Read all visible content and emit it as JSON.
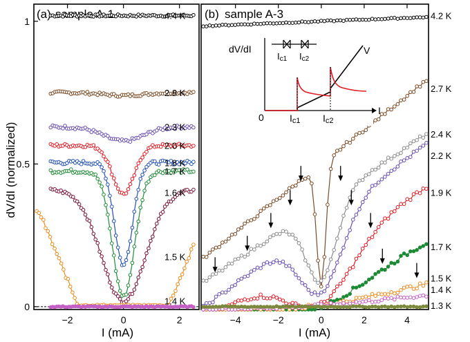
{
  "figure": {
    "ylabel": "dV/dI (normalized)",
    "zero_line_color": "#000000"
  },
  "chart_data": [
    {
      "type": "line",
      "panel": "(a)",
      "title": "sample A-1",
      "xlabel": "I (mA)",
      "ylabel": "dV/dI (normalized)",
      "xlim": [
        -3.2,
        2.7
      ],
      "ylim": [
        -0.01,
        1.06
      ],
      "xticks": [
        -2,
        0,
        2
      ],
      "yticks": [
        0,
        0.5,
        1
      ],
      "ytick_labels": [
        "0",
        "0.5",
        "1"
      ],
      "grid": false,
      "series": [
        {
          "name": "4.4 K",
          "color": "#000000",
          "marker": "open",
          "base": 1.02,
          "dip": 0.0,
          "width": 1.0,
          "noise": 0.004,
          "x_from": -2.6,
          "x_to": 2.5,
          "label_y": 1.02
        },
        {
          "name": "2.8 K",
          "color": "#7b4a24",
          "marker": "open",
          "base": 0.75,
          "dip": 0.01,
          "width": 1.0,
          "noise": 0.005,
          "x_from": -2.6,
          "x_to": 2.5,
          "label_y": 0.75
        },
        {
          "name": "2.3 K",
          "color": "#6a4fb3",
          "marker": "open",
          "base": 0.63,
          "dip": 0.05,
          "width": 1.0,
          "noise": 0.006,
          "x_from": -2.6,
          "x_to": 2.5,
          "label_y": 0.63
        },
        {
          "name": "2.0 K",
          "color": "#e01b24",
          "marker": "open",
          "base": 0.565,
          "dip": 0.17,
          "width": 0.55,
          "noise": 0.006,
          "x_from": -2.6,
          "x_to": 2.5,
          "label_y": 0.565
        },
        {
          "name": "1.8 K",
          "color": "#1f4fb5",
          "marker": "open",
          "base": 0.505,
          "dip": 0.36,
          "width": 0.45,
          "noise": 0.007,
          "x_from": -2.6,
          "x_to": 2.5,
          "label_y": 0.505
        },
        {
          "name": "1.7 K",
          "color": "#1d8a34",
          "marker": "open",
          "base": 0.475,
          "dip": 0.44,
          "width": 0.55,
          "noise": 0.007,
          "x_from": -2.6,
          "x_to": 2.5,
          "label_y": 0.475
        },
        {
          "name": "1.6 K",
          "color": "#7a1238",
          "marker": "open",
          "base": 0.41,
          "dip": 0.39,
          "width": 1.1,
          "noise": 0.006,
          "x_from": -2.6,
          "x_to": 2.5,
          "label_y": 0.4
        },
        {
          "name": "1.5 K",
          "color": "#f08a1c",
          "marker": "open",
          "base": 0.33,
          "dip": 0.33,
          "width": 1.5,
          "noise": 0.008,
          "x_from": -3.1,
          "x_to": 2.5,
          "label_y": 0.175
        },
        {
          "name": "1.4 K",
          "color": "#c45fc4",
          "marker": "filled",
          "base": 0.0,
          "dip": 0.0,
          "width": 1.0,
          "noise": 0.002,
          "x_from": -2.6,
          "x_to": 2.5,
          "label_y": 0.02
        }
      ]
    },
    {
      "type": "line",
      "panel": "(b)",
      "title": "sample A-3",
      "xlabel": "I (mA)",
      "ylabel": "",
      "xlim": [
        -5.6,
        5.0
      ],
      "ylim": [
        -0.01,
        1.06
      ],
      "xticks": [
        -4,
        -2,
        0,
        2,
        4
      ],
      "grid": false,
      "series": [
        {
          "name": "4.2 K",
          "color": "#000000",
          "marker": "open",
          "base": 1.0,
          "slope": 0.003,
          "dip": 0.0,
          "width": 1.0,
          "noise": 0.002,
          "x_from": -5.5,
          "x_to": 4.9,
          "label_y": 1.02
        },
        {
          "name": "2.7 K",
          "color": "#7b4a24",
          "marker": "open",
          "base": 0.5,
          "slope": 0.06,
          "dip": 0.43,
          "width": 0.3,
          "noise": 0.006,
          "x_from": -5.5,
          "x_to": 4.9,
          "label_y": 0.765
        },
        {
          "name": "2.4 K",
          "color": "#8c8c8c",
          "marker": "open",
          "base": 0.36,
          "slope": 0.05,
          "dip": 0.27,
          "width": 1.0,
          "noise": 0.007,
          "x_from": -5.5,
          "x_to": 4.9,
          "label_y": 0.605
        },
        {
          "name": "2.2 K",
          "color": "#6a4fb3",
          "marker": "open",
          "base": 0.3,
          "slope": 0.055,
          "dip": 0.25,
          "width": 1.4,
          "noise": 0.007,
          "x_from": -5.5,
          "x_to": 4.9,
          "label_y": 0.53
        },
        {
          "name": "1.9 K",
          "color": "#e01b24",
          "marker": "open",
          "base": 0.2,
          "slope": 0.045,
          "dip": 0.19,
          "width": 2.2,
          "noise": 0.008,
          "x_from": -5.5,
          "x_to": 4.9,
          "label_y": 0.4
        },
        {
          "name": "1.7 K",
          "color": "#1d8a34",
          "marker": "filled",
          "base": 0.09,
          "slope": 0.03,
          "dip": 0.09,
          "width": 3.5,
          "noise": 0.008,
          "x_from": -5.5,
          "x_to": 4.9,
          "label_y": 0.21
        },
        {
          "name": "1.5 K",
          "color": "#f08a1c",
          "marker": "open",
          "base": 0.04,
          "slope": 0.01,
          "dip": 0.035,
          "width": 4.5,
          "noise": 0.008,
          "x_from": -5.5,
          "x_to": 4.9,
          "label_y": 0.1
        },
        {
          "name": "1.4 K",
          "color": "#c45fc4",
          "marker": "open",
          "base": 0.02,
          "slope": 0.005,
          "dip": 0.015,
          "width": 4.6,
          "noise": 0.006,
          "x_from": -5.5,
          "x_to": 4.9,
          "label_y": 0.06
        },
        {
          "name": "1.3 K",
          "color": "#7a8a3a",
          "marker": "filled",
          "base": 0.0,
          "slope": 0.0,
          "dip": 0.0,
          "width": 1.0,
          "noise": 0.002,
          "x_from": -5.5,
          "x_to": 4.9,
          "label_y": 0.005
        }
      ],
      "arrows": [
        {
          "x": -0.95,
          "y": 0.44,
          "color": "#000000"
        },
        {
          "x": 0.9,
          "y": 0.44,
          "color": "#000000"
        },
        {
          "x": -1.45,
          "y": 0.355,
          "color": "#000000"
        },
        {
          "x": 1.4,
          "y": 0.355,
          "color": "#000000"
        },
        {
          "x": -2.35,
          "y": 0.275,
          "color": "#000000"
        },
        {
          "x": 2.3,
          "y": 0.275,
          "color": "#000000"
        },
        {
          "x": -3.45,
          "y": 0.195,
          "color": "#000000"
        },
        {
          "x": 2.85,
          "y": 0.15,
          "color": "#000000"
        },
        {
          "x": -4.95,
          "y": 0.12,
          "color": "#000000"
        },
        {
          "x": 4.45,
          "y": 0.1,
          "color": "#000000"
        }
      ],
      "inset": {
        "ylabel_red": "dV/dI",
        "ylabel_black": "V",
        "xlabel": "I",
        "origin": "0",
        "ic1": "I",
        "ic1_sub": "c1",
        "ic2": "I",
        "ic2_sub": "c2",
        "red_color": "#e01b24"
      }
    }
  ]
}
